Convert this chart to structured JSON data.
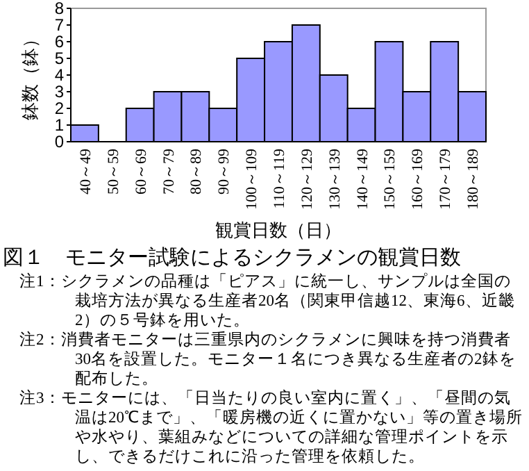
{
  "chart_data": {
    "type": "bar",
    "title": "図１　モニター試験によるシクラメンの観賞日数",
    "xlabel": "観賞日数（日）",
    "ylabel": "鉢数（鉢）",
    "categories": [
      "40～49",
      "50～59",
      "60～69",
      "70～79",
      "80～89",
      "90～99",
      "100～109",
      "110～119",
      "120～129",
      "130～139",
      "140～149",
      "150～159",
      "160～169",
      "170～179",
      "180～189"
    ],
    "values": [
      1,
      0,
      2,
      3,
      3,
      2,
      5,
      6,
      7,
      4,
      2,
      6,
      3,
      6,
      3
    ],
    "color": "#9999ff",
    "ylim": [
      0,
      8
    ],
    "yticks": [
      0,
      1,
      2,
      3,
      4,
      5,
      6,
      7,
      8
    ],
    "grid": false,
    "annotations": [
      "注1：シクラメンの品種は「ピアス」に統一し、サンプルは全国の栽培方法が異なる生産者20名（関東甲信越12、東海6、近畿2）の５号鉢を用いた。",
      "注2：消費者モニターは三重県内のシクラメンに興味を持つ消費者30名を設置した。モニター１名につき異なる生産者の2鉢を配布した。",
      "注3：モニターには、「日当たりの良い室内に置く」、「昼間の気温は20℃まで」、「暖房機の近くに置かない」等の置き場所や水やり、葉組みなどについての詳細な管理ポイントを示し、できるだけこれに沿った管理を依頼した。"
    ]
  }
}
